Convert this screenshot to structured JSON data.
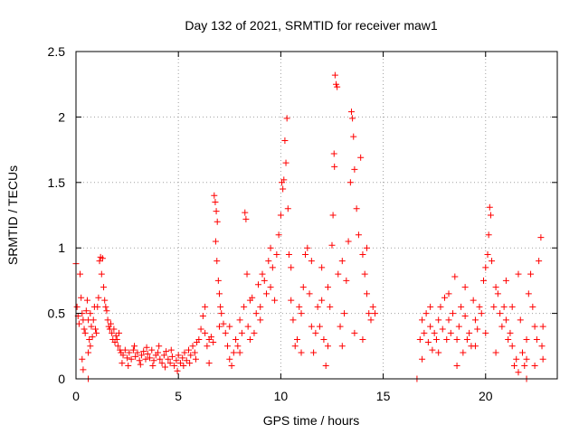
{
  "chart_data": {
    "type": "scatter",
    "title": "Day 132 of 2021, SRMTID for receiver maw1",
    "xlabel": "GPS time / hours",
    "ylabel": "SRMTID / TECUs",
    "xlim": [
      0,
      23.5
    ],
    "ylim": [
      0,
      2.5
    ],
    "xticks": [
      0,
      5,
      10,
      15,
      20
    ],
    "yticks": [
      0,
      0.5,
      1,
      1.5,
      2,
      2.5
    ],
    "xtick_labels": [
      "0",
      "5",
      "10",
      "15",
      "20"
    ],
    "ytick_labels": [
      "0",
      "0.5",
      "1",
      "1.5",
      "2",
      "2.5"
    ],
    "grid": true,
    "marker": "plus",
    "color": "#ff0000",
    "series": [
      {
        "name": "SRMTID",
        "points": [
          [
            0.0,
            0.88
          ],
          [
            0.05,
            0.55
          ],
          [
            0.1,
            0.48
          ],
          [
            0.15,
            0.42
          ],
          [
            0.2,
            0.8
          ],
          [
            0.25,
            0.62
          ],
          [
            0.3,
            0.5
          ],
          [
            0.35,
            0.45
          ],
          [
            0.4,
            0.38
          ],
          [
            0.45,
            0.35
          ],
          [
            0.5,
            0.52
          ],
          [
            0.55,
            0.6
          ],
          [
            0.6,
            0.45
          ],
          [
            0.65,
            0.3
          ],
          [
            0.7,
            0.25
          ],
          [
            0.3,
            0.15
          ],
          [
            0.35,
            0.07
          ],
          [
            0.6,
            0.2
          ],
          [
            0.7,
            0.5
          ],
          [
            0.75,
            0.4
          ],
          [
            0.8,
            0.32
          ],
          [
            0.85,
            0.45
          ],
          [
            0.9,
            0.55
          ],
          [
            0.95,
            0.38
          ],
          [
            1.0,
            0.35
          ],
          [
            1.05,
            0.55
          ],
          [
            1.1,
            0.62
          ],
          [
            1.15,
            0.9
          ],
          [
            1.2,
            0.93
          ],
          [
            1.25,
            0.8
          ],
          [
            1.3,
            0.92
          ],
          [
            1.35,
            0.7
          ],
          [
            1.4,
            0.6
          ],
          [
            1.45,
            0.55
          ],
          [
            1.5,
            0.52
          ],
          [
            1.55,
            0.45
          ],
          [
            1.6,
            0.4
          ],
          [
            1.65,
            0.38
          ],
          [
            1.7,
            0.42
          ],
          [
            1.75,
            0.35
          ],
          [
            1.8,
            0.3
          ],
          [
            1.85,
            0.38
          ],
          [
            1.9,
            0.28
          ],
          [
            1.95,
            0.33
          ],
          [
            2.0,
            0.3
          ],
          [
            2.05,
            0.25
          ],
          [
            2.1,
            0.35
          ],
          [
            2.15,
            0.22
          ],
          [
            2.2,
            0.2
          ],
          [
            2.3,
            0.18
          ],
          [
            2.4,
            0.22
          ],
          [
            2.5,
            0.16
          ],
          [
            2.6,
            0.2
          ],
          [
            2.7,
            0.15
          ],
          [
            2.8,
            0.22
          ],
          [
            2.9,
            0.17
          ],
          [
            3.0,
            0.2
          ],
          [
            3.1,
            0.14
          ],
          [
            3.2,
            0.18
          ],
          [
            3.3,
            0.21
          ],
          [
            3.4,
            0.15
          ],
          [
            3.5,
            0.19
          ],
          [
            3.6,
            0.16
          ],
          [
            3.7,
            0.22
          ],
          [
            3.8,
            0.14
          ],
          [
            3.9,
            0.18
          ],
          [
            4.0,
            0.2
          ],
          [
            4.1,
            0.15
          ],
          [
            4.2,
            0.12
          ],
          [
            4.3,
            0.18
          ],
          [
            4.4,
            0.21
          ],
          [
            4.5,
            0.15
          ],
          [
            4.6,
            0.12
          ],
          [
            4.7,
            0.17
          ],
          [
            4.8,
            0.1
          ],
          [
            4.9,
            0.14
          ],
          [
            5.0,
            0.18
          ],
          [
            5.1,
            0.12
          ],
          [
            5.2,
            0.16
          ],
          [
            5.3,
            0.2
          ],
          [
            5.4,
            0.14
          ],
          [
            5.5,
            0.22
          ],
          [
            5.6,
            0.18
          ],
          [
            5.7,
            0.25
          ],
          [
            5.8,
            0.2
          ],
          [
            5.9,
            0.28
          ],
          [
            2.25,
            0.12
          ],
          [
            2.55,
            0.1
          ],
          [
            2.85,
            0.25
          ],
          [
            3.15,
            0.11
          ],
          [
            3.45,
            0.24
          ],
          [
            3.75,
            0.1
          ],
          [
            4.05,
            0.25
          ],
          [
            4.35,
            0.09
          ],
          [
            4.65,
            0.22
          ],
          [
            4.95,
            0.06
          ],
          [
            5.25,
            0.1
          ],
          [
            5.55,
            0.12
          ],
          [
            5.85,
            0.15
          ],
          [
            6.0,
            0.3
          ],
          [
            6.1,
            0.38
          ],
          [
            6.2,
            0.48
          ],
          [
            6.3,
            0.35
          ],
          [
            6.4,
            0.25
          ],
          [
            6.5,
            0.3
          ],
          [
            6.6,
            0.32
          ],
          [
            6.7,
            0.28
          ],
          [
            6.75,
            1.4
          ],
          [
            6.8,
            1.35
          ],
          [
            6.85,
            1.28
          ],
          [
            6.9,
            1.2
          ],
          [
            6.82,
            1.05
          ],
          [
            6.88,
            0.9
          ],
          [
            6.95,
            0.75
          ],
          [
            7.0,
            0.65
          ],
          [
            7.05,
            0.55
          ],
          [
            7.1,
            0.5
          ],
          [
            7.2,
            0.42
          ],
          [
            7.3,
            0.35
          ],
          [
            7.4,
            0.25
          ],
          [
            7.5,
            0.15
          ],
          [
            7.6,
            0.1
          ],
          [
            7.7,
            0.2
          ],
          [
            7.8,
            0.3
          ],
          [
            7.9,
            0.25
          ],
          [
            8.0,
            0.45
          ],
          [
            8.1,
            0.35
          ],
          [
            8.2,
            0.55
          ],
          [
            8.25,
            1.27
          ],
          [
            8.3,
            1.22
          ],
          [
            8.35,
            0.8
          ],
          [
            8.4,
            0.4
          ],
          [
            8.5,
            0.3
          ],
          [
            8.6,
            0.62
          ],
          [
            8.7,
            0.35
          ],
          [
            8.8,
            0.5
          ],
          [
            8.9,
            0.72
          ],
          [
            9.0,
            0.55
          ],
          [
            9.1,
            0.8
          ],
          [
            9.2,
            0.75
          ],
          [
            9.3,
            0.65
          ],
          [
            9.4,
            0.9
          ],
          [
            9.5,
            0.7
          ],
          [
            9.6,
            0.85
          ],
          [
            9.7,
            0.6
          ],
          [
            9.8,
            0.95
          ],
          [
            9.9,
            1.1
          ],
          [
            10.0,
            1.25
          ],
          [
            10.05,
            1.5
          ],
          [
            10.1,
            1.45
          ],
          [
            10.15,
            1.52
          ],
          [
            10.2,
            1.82
          ],
          [
            10.25,
            1.65
          ],
          [
            10.3,
            1.99
          ],
          [
            10.35,
            1.3
          ],
          [
            10.4,
            0.95
          ],
          [
            10.5,
            0.6
          ],
          [
            10.6,
            0.45
          ],
          [
            10.7,
            0.25
          ],
          [
            10.8,
            0.3
          ],
          [
            10.9,
            0.55
          ],
          [
            11.0,
            0.5
          ],
          [
            11.1,
            0.7
          ],
          [
            11.2,
            0.95
          ],
          [
            11.3,
            1.0
          ],
          [
            11.4,
            0.65
          ],
          [
            11.5,
            0.4
          ],
          [
            11.6,
            0.2
          ],
          [
            11.7,
            0.35
          ],
          [
            11.8,
            0.55
          ],
          [
            11.9,
            0.4
          ],
          [
            12.0,
            0.6
          ],
          [
            12.1,
            0.3
          ],
          [
            12.2,
            0.1
          ],
          [
            12.3,
            0.25
          ],
          [
            12.4,
            0.55
          ],
          [
            12.5,
            1.02
          ],
          [
            12.55,
            1.25
          ],
          [
            12.6,
            1.72
          ],
          [
            12.65,
            2.32
          ],
          [
            12.7,
            2.25
          ],
          [
            12.75,
            2.23
          ],
          [
            12.62,
            1.62
          ],
          [
            12.8,
            0.8
          ],
          [
            12.9,
            0.4
          ],
          [
            13.0,
            0.25
          ],
          [
            13.1,
            0.5
          ],
          [
            13.2,
            0.75
          ],
          [
            13.3,
            1.05
          ],
          [
            13.4,
            1.5
          ],
          [
            13.45,
            2.04
          ],
          [
            13.5,
            1.99
          ],
          [
            13.55,
            1.85
          ],
          [
            13.6,
            1.6
          ],
          [
            13.7,
            1.3
          ],
          [
            13.8,
            1.1
          ],
          [
            13.9,
            1.69
          ],
          [
            14.0,
            0.95
          ],
          [
            14.1,
            0.8
          ],
          [
            14.2,
            0.65
          ],
          [
            14.3,
            0.5
          ],
          [
            14.4,
            0.45
          ],
          [
            14.5,
            0.55
          ],
          [
            14.6,
            0.5
          ],
          [
            10.5,
            0.85
          ],
          [
            11.0,
            0.2
          ],
          [
            11.5,
            0.9
          ],
          [
            12.0,
            0.85
          ],
          [
            12.3,
            0.7
          ],
          [
            13.0,
            0.9
          ],
          [
            13.6,
            0.35
          ],
          [
            14.0,
            0.3
          ],
          [
            14.2,
            1.0
          ],
          [
            9.5,
            1.0
          ],
          [
            9.0,
            0.45
          ],
          [
            8.5,
            0.6
          ],
          [
            8.0,
            0.2
          ],
          [
            7.5,
            0.4
          ],
          [
            7.0,
            0.4
          ],
          [
            6.5,
            0.12
          ],
          [
            6.3,
            0.55
          ],
          [
            16.8,
            0.3
          ],
          [
            16.9,
            0.45
          ],
          [
            17.0,
            0.35
          ],
          [
            17.1,
            0.5
          ],
          [
            17.2,
            0.28
          ],
          [
            17.3,
            0.4
          ],
          [
            17.4,
            0.22
          ],
          [
            17.5,
            0.35
          ],
          [
            17.6,
            0.3
          ],
          [
            17.7,
            0.45
          ],
          [
            17.8,
            0.55
          ],
          [
            17.9,
            0.38
          ],
          [
            18.0,
            0.62
          ],
          [
            18.1,
            0.3
          ],
          [
            18.2,
            0.45
          ],
          [
            18.3,
            0.35
          ],
          [
            18.4,
            0.5
          ],
          [
            18.5,
            0.78
          ],
          [
            18.6,
            0.3
          ],
          [
            18.7,
            0.4
          ],
          [
            18.8,
            0.55
          ],
          [
            18.9,
            0.2
          ],
          [
            19.0,
            0.48
          ],
          [
            19.1,
            0.3
          ],
          [
            19.2,
            0.35
          ],
          [
            19.3,
            0.25
          ],
          [
            19.4,
            0.6
          ],
          [
            19.5,
            0.45
          ],
          [
            19.6,
            0.38
          ],
          [
            19.7,
            0.55
          ],
          [
            19.8,
            0.5
          ],
          [
            19.9,
            0.75
          ],
          [
            20.0,
            0.85
          ],
          [
            20.1,
            0.95
          ],
          [
            20.15,
            1.1
          ],
          [
            20.2,
            1.31
          ],
          [
            20.25,
            1.25
          ],
          [
            20.3,
            0.9
          ],
          [
            20.4,
            0.55
          ],
          [
            20.5,
            0.7
          ],
          [
            20.6,
            0.65
          ],
          [
            20.7,
            0.5
          ],
          [
            20.8,
            0.4
          ],
          [
            20.9,
            0.55
          ],
          [
            21.0,
            0.45
          ],
          [
            21.1,
            0.3
          ],
          [
            21.2,
            0.35
          ],
          [
            21.3,
            0.25
          ],
          [
            21.4,
            0.1
          ],
          [
            21.5,
            0.15
          ],
          [
            21.6,
            0.8
          ],
          [
            21.7,
            0.45
          ],
          [
            21.8,
            0.2
          ],
          [
            21.9,
            0.1
          ],
          [
            22.0,
            0.15
          ],
          [
            22.1,
            0.65
          ],
          [
            22.2,
            0.8
          ],
          [
            22.3,
            0.55
          ],
          [
            22.4,
            0.4
          ],
          [
            22.5,
            0.3
          ],
          [
            22.6,
            0.9
          ],
          [
            22.7,
            1.08
          ],
          [
            22.75,
            0.25
          ],
          [
            22.8,
            0.15
          ],
          [
            16.9,
            0.15
          ],
          [
            17.3,
            0.55
          ],
          [
            17.7,
            0.2
          ],
          [
            18.2,
            0.65
          ],
          [
            18.6,
            0.1
          ],
          [
            19.0,
            0.7
          ],
          [
            19.5,
            0.25
          ],
          [
            20.0,
            0.35
          ],
          [
            20.5,
            0.2
          ],
          [
            21.0,
            0.75
          ],
          [
            21.3,
            0.55
          ],
          [
            21.6,
            0.05
          ],
          [
            22.0,
            0.3
          ],
          [
            22.4,
            0.1
          ],
          [
            22.8,
            0.4
          ],
          [
            0.6,
            0.0
          ],
          [
            16.65,
            0.0
          ],
          [
            22.0,
            0.0
          ]
        ]
      }
    ]
  }
}
